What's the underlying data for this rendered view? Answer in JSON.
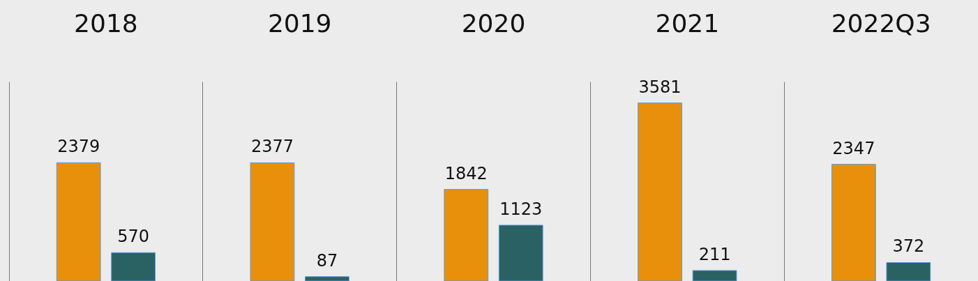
{
  "chart_data": {
    "type": "bar",
    "categories": [
      "2018",
      "2019",
      "2020",
      "2021",
      "2022Q3"
    ],
    "series": [
      {
        "color": "#e8900c",
        "values": [
          2379,
          2377,
          1842,
          3581,
          2347
        ]
      },
      {
        "color": "#2a6162",
        "values": [
          570,
          87,
          1123,
          211,
          372
        ]
      }
    ],
    "data_labels": true,
    "grid": "x"
  }
}
